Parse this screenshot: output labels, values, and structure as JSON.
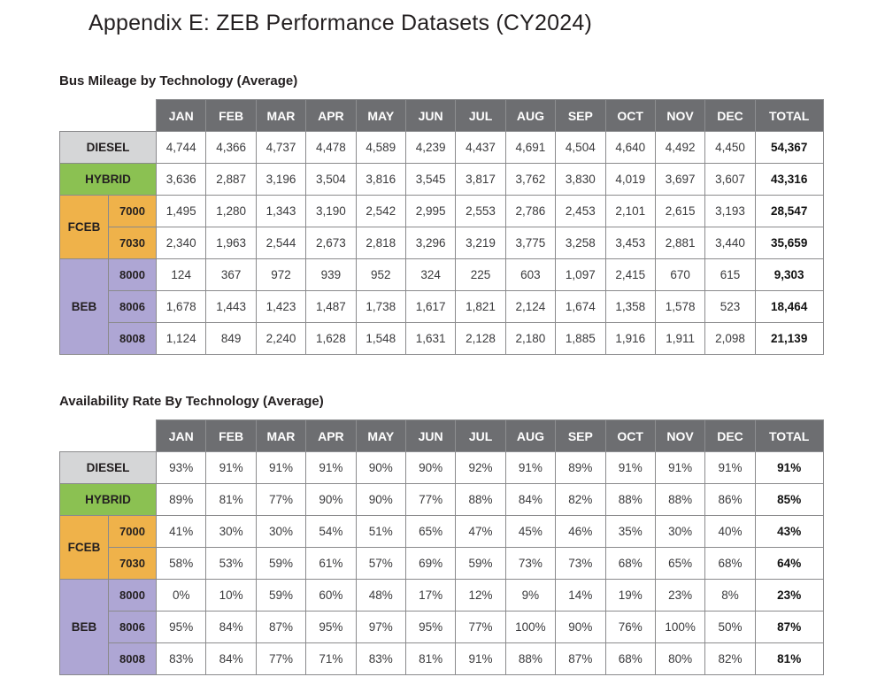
{
  "page_title": "Appendix E: ZEB Performance Datasets (CY2024)",
  "colors": {
    "header_bg": "#6d6e71",
    "header_text": "#ffffff",
    "diesel": "#d5d6d7",
    "hybrid": "#8bc152",
    "fceb": "#efb24a",
    "beb": "#aea6d4",
    "border": "#8a8a8c"
  },
  "tables": [
    {
      "heading": "Bus Mileage by Technology (Average)",
      "columns": [
        "JAN",
        "FEB",
        "MAR",
        "APR",
        "MAY",
        "JUN",
        "JUL",
        "AUG",
        "SEP",
        "OCT",
        "NOV",
        "DEC",
        "TOTAL"
      ],
      "row_groups": [
        {
          "label": "DIESEL",
          "color_key": "diesel",
          "rows": [
            {
              "sub": null,
              "values": [
                "4,744",
                "4,366",
                "4,737",
                "4,478",
                "4,589",
                "4,239",
                "4,437",
                "4,691",
                "4,504",
                "4,640",
                "4,492",
                "4,450"
              ],
              "total": "54,367"
            }
          ]
        },
        {
          "label": "HYBRID",
          "color_key": "hybrid",
          "rows": [
            {
              "sub": null,
              "values": [
                "3,636",
                "2,887",
                "3,196",
                "3,504",
                "3,816",
                "3,545",
                "3,817",
                "3,762",
                "3,830",
                "4,019",
                "3,697",
                "3,607"
              ],
              "total": "43,316"
            }
          ]
        },
        {
          "label": "FCEB",
          "color_key": "fceb",
          "rows": [
            {
              "sub": "7000",
              "values": [
                "1,495",
                "1,280",
                "1,343",
                "3,190",
                "2,542",
                "2,995",
                "2,553",
                "2,786",
                "2,453",
                "2,101",
                "2,615",
                "3,193"
              ],
              "total": "28,547"
            },
            {
              "sub": "7030",
              "values": [
                "2,340",
                "1,963",
                "2,544",
                "2,673",
                "2,818",
                "3,296",
                "3,219",
                "3,775",
                "3,258",
                "3,453",
                "2,881",
                "3,440"
              ],
              "total": "35,659"
            }
          ]
        },
        {
          "label": "BEB",
          "color_key": "beb",
          "rows": [
            {
              "sub": "8000",
              "values": [
                "124",
                "367",
                "972",
                "939",
                "952",
                "324",
                "225",
                "603",
                "1,097",
                "2,415",
                "670",
                "615"
              ],
              "total": "9,303"
            },
            {
              "sub": "8006",
              "values": [
                "1,678",
                "1,443",
                "1,423",
                "1,487",
                "1,738",
                "1,617",
                "1,821",
                "2,124",
                "1,674",
                "1,358",
                "1,578",
                "523"
              ],
              "total": "18,464"
            },
            {
              "sub": "8008",
              "values": [
                "1,124",
                "849",
                "2,240",
                "1,628",
                "1,548",
                "1,631",
                "2,128",
                "2,180",
                "1,885",
                "1,916",
                "1,911",
                "2,098"
              ],
              "total": "21,139"
            }
          ]
        }
      ]
    },
    {
      "heading": "Availability Rate By Technology (Average)",
      "columns": [
        "JAN",
        "FEB",
        "MAR",
        "APR",
        "MAY",
        "JUN",
        "JUL",
        "AUG",
        "SEP",
        "OCT",
        "NOV",
        "DEC",
        "TOTAL"
      ],
      "row_groups": [
        {
          "label": "DIESEL",
          "color_key": "diesel",
          "rows": [
            {
              "sub": null,
              "values": [
                "93%",
                "91%",
                "91%",
                "91%",
                "90%",
                "90%",
                "92%",
                "91%",
                "89%",
                "91%",
                "91%",
                "91%"
              ],
              "total": "91%"
            }
          ]
        },
        {
          "label": "HYBRID",
          "color_key": "hybrid",
          "rows": [
            {
              "sub": null,
              "values": [
                "89%",
                "81%",
                "77%",
                "90%",
                "90%",
                "77%",
                "88%",
                "84%",
                "82%",
                "88%",
                "88%",
                "86%"
              ],
              "total": "85%"
            }
          ]
        },
        {
          "label": "FCEB",
          "color_key": "fceb",
          "rows": [
            {
              "sub": "7000",
              "values": [
                "41%",
                "30%",
                "30%",
                "54%",
                "51%",
                "65%",
                "47%",
                "45%",
                "46%",
                "35%",
                "30%",
                "40%"
              ],
              "total": "43%"
            },
            {
              "sub": "7030",
              "values": [
                "58%",
                "53%",
                "59%",
                "61%",
                "57%",
                "69%",
                "59%",
                "73%",
                "73%",
                "68%",
                "65%",
                "68%"
              ],
              "total": "64%"
            }
          ]
        },
        {
          "label": "BEB",
          "color_key": "beb",
          "rows": [
            {
              "sub": "8000",
              "values": [
                "0%",
                "10%",
                "59%",
                "60%",
                "48%",
                "17%",
                "12%",
                "9%",
                "14%",
                "19%",
                "23%",
                "8%"
              ],
              "total": "23%"
            },
            {
              "sub": "8006",
              "values": [
                "95%",
                "84%",
                "87%",
                "95%",
                "97%",
                "95%",
                "77%",
                "100%",
                "90%",
                "76%",
                "100%",
                "50%"
              ],
              "total": "87%"
            },
            {
              "sub": "8008",
              "values": [
                "83%",
                "84%",
                "77%",
                "71%",
                "83%",
                "81%",
                "91%",
                "88%",
                "87%",
                "68%",
                "80%",
                "82%"
              ],
              "total": "81%"
            }
          ]
        }
      ]
    }
  ]
}
